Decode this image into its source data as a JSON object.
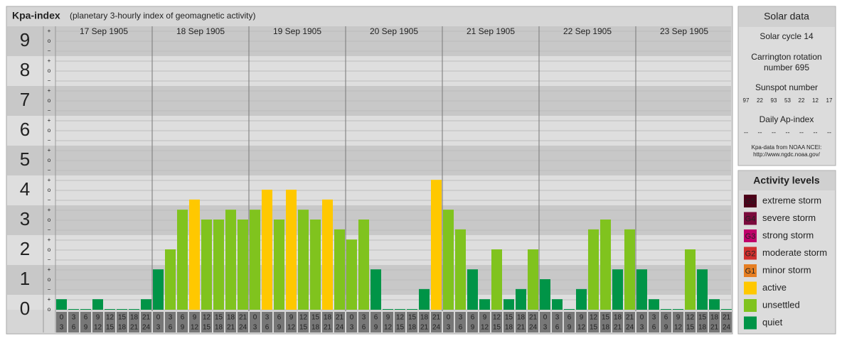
{
  "chart_data": {
    "type": "bar",
    "title": "Kpa-index",
    "subtitle": "(planetary 3-hourly index of geomagnetic activity)",
    "days": [
      "17 Sep 1905",
      "18 Sep 1905",
      "19 Sep 1905",
      "20 Sep 1905",
      "21 Sep 1905",
      "22 Sep 1905",
      "23 Sep 1905"
    ],
    "hours": [
      [
        "0",
        "3"
      ],
      [
        "3",
        "6"
      ],
      [
        "6",
        "9"
      ],
      [
        "9",
        "12"
      ],
      [
        "12",
        "15"
      ],
      [
        "15",
        "18"
      ],
      [
        "18",
        "21"
      ],
      [
        "21",
        "24"
      ]
    ],
    "values": [
      0.33,
      0,
      0,
      0.33,
      0,
      0,
      0,
      0.33,
      1.33,
      2,
      3.33,
      3.67,
      3,
      3,
      3.33,
      3,
      3.33,
      4,
      3,
      4,
      3.33,
      3,
      3.67,
      2.67,
      2.33,
      3,
      1.33,
      0,
      0,
      0,
      0.67,
      4.33,
      3.33,
      2.67,
      1.33,
      0.33,
      2,
      0.33,
      0.67,
      2,
      1,
      0.33,
      0,
      0.67,
      2.67,
      3,
      1.33,
      2.67,
      1.33,
      0.33,
      0,
      0,
      2,
      1.33,
      0.33,
      0
    ],
    "colors": [
      "#009447",
      "#009447",
      "#009447",
      "#009447",
      "#009447",
      "#009447",
      "#009447",
      "#009447",
      "#009447",
      "#80c31e",
      "#80c31e",
      "#ffc800",
      "#80c31e",
      "#80c31e",
      "#80c31e",
      "#80c31e",
      "#80c31e",
      "#ffc800",
      "#80c31e",
      "#ffc800",
      "#80c31e",
      "#80c31e",
      "#ffc800",
      "#80c31e",
      "#80c31e",
      "#80c31e",
      "#009447",
      "#009447",
      "#009447",
      "#009447",
      "#009447",
      "#ffc800",
      "#80c31e",
      "#80c31e",
      "#009447",
      "#009447",
      "#80c31e",
      "#009447",
      "#009447",
      "#80c31e",
      "#009447",
      "#009447",
      "#009447",
      "#009447",
      "#80c31e",
      "#80c31e",
      "#009447",
      "#80c31e",
      "#009447",
      "#009447",
      "#009447",
      "#009447",
      "#80c31e",
      "#009447",
      "#009447",
      "#009447"
    ],
    "ylim": [
      0,
      9.5
    ],
    "yticks": [
      0,
      1,
      2,
      3,
      4,
      5,
      6,
      7,
      8,
      9
    ],
    "sub_ticks": [
      "−",
      "o",
      "+"
    ],
    "solar": {
      "title": "Solar data",
      "cycle": "Solar cycle 14",
      "carrington": [
        "Carrington rotation",
        "number 695"
      ],
      "sunspot_title": "Sunspot number",
      "sunspots": [
        "97",
        "22",
        "93",
        "53",
        "22",
        "12",
        "17"
      ],
      "ap_title": "Daily Ap-index",
      "ap": [
        "--",
        "--",
        "--",
        "--",
        "--",
        "--",
        "--"
      ],
      "source": [
        "Kpa-data from NOAA NCEI:",
        "http://www.ngdc.noaa.gov/"
      ]
    },
    "levels": {
      "title": "Activity levels",
      "items": [
        {
          "badge": "G5",
          "label": "extreme storm",
          "color": "#4d0019"
        },
        {
          "badge": "G4",
          "label": "severe storm",
          "color": "#7a0a3c"
        },
        {
          "badge": "G3",
          "label": "strong storm",
          "color": "#c0006a"
        },
        {
          "badge": "G2",
          "label": "moderate storm",
          "color": "#d0302e"
        },
        {
          "badge": "G1",
          "label": "minor storm",
          "color": "#e67e22"
        },
        {
          "label": "active",
          "color": "#ffc800"
        },
        {
          "label": "unsettled",
          "color": "#80c31e"
        },
        {
          "label": "quiet",
          "color": "#009447"
        }
      ]
    }
  }
}
